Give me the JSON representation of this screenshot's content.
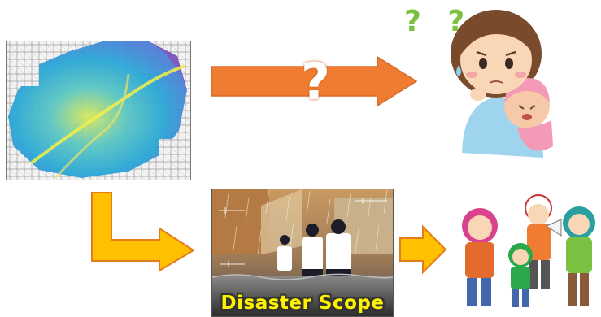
{
  "figure": {
    "caption": "Disaster Scope",
    "question_marks": "? ?",
    "arrow_question_mark": "?"
  },
  "colors": {
    "arrow_orange": "#f07c32",
    "arrow_yellow": "#ffc000",
    "flood_blue": "#2aa7d6",
    "caption_yellow": "#fff200"
  },
  "icons": [
    "hazard-map",
    "question-arrow",
    "confused-mother-with-baby",
    "l-shaped-arrow",
    "ar-flood-photo",
    "right-arrow",
    "evacuating-family"
  ]
}
